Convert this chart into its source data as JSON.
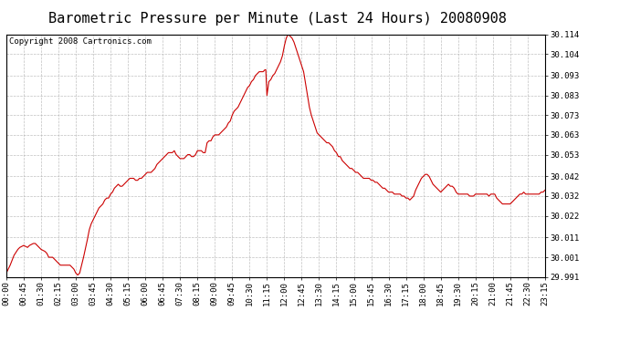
{
  "title": "Barometric Pressure per Minute (Last 24 Hours) 20080908",
  "copyright": "Copyright 2008 Cartronics.com",
  "line_color": "#cc0000",
  "background_color": "#ffffff",
  "grid_color": "#b0b0b0",
  "axis_label_color": "#000000",
  "ylim": [
    29.991,
    30.114
  ],
  "yticks": [
    29.991,
    30.001,
    30.011,
    30.022,
    30.032,
    30.042,
    30.053,
    30.063,
    30.073,
    30.083,
    30.093,
    30.104,
    30.114
  ],
  "xtick_labels": [
    "00:00",
    "00:45",
    "01:30",
    "02:15",
    "03:00",
    "03:45",
    "04:30",
    "05:15",
    "06:00",
    "06:45",
    "07:30",
    "08:15",
    "09:00",
    "09:45",
    "10:30",
    "11:15",
    "12:00",
    "12:45",
    "13:30",
    "14:15",
    "15:00",
    "15:45",
    "16:30",
    "17:15",
    "18:00",
    "18:45",
    "19:30",
    "20:15",
    "21:00",
    "21:45",
    "22:30",
    "23:15"
  ],
  "x_values": [
    0,
    45,
    90,
    135,
    180,
    225,
    270,
    315,
    360,
    405,
    450,
    495,
    540,
    585,
    630,
    675,
    720,
    765,
    810,
    855,
    900,
    945,
    990,
    1035,
    1080,
    1125,
    1170,
    1215,
    1260,
    1305,
    1350,
    1395
  ],
  "pressure_curve": [
    [
      0,
      29.993
    ],
    [
      10,
      29.997
    ],
    [
      20,
      30.002
    ],
    [
      30,
      30.005
    ],
    [
      35,
      30.006
    ],
    [
      45,
      30.007
    ],
    [
      55,
      30.006
    ],
    [
      60,
      30.007
    ],
    [
      70,
      30.008
    ],
    [
      75,
      30.008
    ],
    [
      80,
      30.007
    ],
    [
      90,
      30.005
    ],
    [
      100,
      30.004
    ],
    [
      105,
      30.003
    ],
    [
      110,
      30.001
    ],
    [
      120,
      30.001
    ],
    [
      125,
      30.0
    ],
    [
      130,
      29.999
    ],
    [
      135,
      29.998
    ],
    [
      140,
      29.997
    ],
    [
      145,
      29.997
    ],
    [
      150,
      29.997
    ],
    [
      155,
      29.997
    ],
    [
      160,
      29.997
    ],
    [
      165,
      29.997
    ],
    [
      170,
      29.996
    ],
    [
      175,
      29.995
    ],
    [
      180,
      29.993
    ],
    [
      185,
      29.992
    ],
    [
      190,
      29.993
    ],
    [
      200,
      30.001
    ],
    [
      210,
      30.01
    ],
    [
      215,
      30.015
    ],
    [
      220,
      30.018
    ],
    [
      225,
      30.02
    ],
    [
      230,
      30.022
    ],
    [
      235,
      30.024
    ],
    [
      240,
      30.026
    ],
    [
      245,
      30.027
    ],
    [
      250,
      30.028
    ],
    [
      255,
      30.03
    ],
    [
      260,
      30.031
    ],
    [
      265,
      30.031
    ],
    [
      270,
      30.033
    ],
    [
      275,
      30.034
    ],
    [
      280,
      30.036
    ],
    [
      285,
      30.037
    ],
    [
      290,
      30.038
    ],
    [
      295,
      30.037
    ],
    [
      300,
      30.037
    ],
    [
      305,
      30.038
    ],
    [
      310,
      30.039
    ],
    [
      315,
      30.04
    ],
    [
      320,
      30.041
    ],
    [
      325,
      30.041
    ],
    [
      330,
      30.041
    ],
    [
      335,
      30.04
    ],
    [
      340,
      30.04
    ],
    [
      345,
      30.041
    ],
    [
      350,
      30.041
    ],
    [
      355,
      30.042
    ],
    [
      360,
      30.043
    ],
    [
      365,
      30.044
    ],
    [
      370,
      30.044
    ],
    [
      375,
      30.044
    ],
    [
      380,
      30.045
    ],
    [
      385,
      30.046
    ],
    [
      390,
      30.048
    ],
    [
      395,
      30.049
    ],
    [
      400,
      30.05
    ],
    [
      405,
      30.051
    ],
    [
      410,
      30.052
    ],
    [
      415,
      30.053
    ],
    [
      420,
      30.054
    ],
    [
      425,
      30.054
    ],
    [
      430,
      30.054
    ],
    [
      435,
      30.055
    ],
    [
      440,
      30.053
    ],
    [
      445,
      30.052
    ],
    [
      450,
      30.051
    ],
    [
      455,
      30.051
    ],
    [
      460,
      30.051
    ],
    [
      465,
      30.052
    ],
    [
      470,
      30.053
    ],
    [
      475,
      30.053
    ],
    [
      480,
      30.052
    ],
    [
      485,
      30.052
    ],
    [
      490,
      30.053
    ],
    [
      495,
      30.055
    ],
    [
      500,
      30.055
    ],
    [
      505,
      30.055
    ],
    [
      510,
      30.054
    ],
    [
      515,
      30.054
    ],
    [
      517,
      30.056
    ],
    [
      520,
      30.059
    ],
    [
      525,
      30.06
    ],
    [
      530,
      30.06
    ],
    [
      535,
      30.062
    ],
    [
      540,
      30.063
    ],
    [
      545,
      30.063
    ],
    [
      550,
      30.063
    ],
    [
      555,
      30.064
    ],
    [
      560,
      30.065
    ],
    [
      565,
      30.066
    ],
    [
      570,
      30.067
    ],
    [
      575,
      30.069
    ],
    [
      580,
      30.07
    ],
    [
      585,
      30.073
    ],
    [
      590,
      30.075
    ],
    [
      595,
      30.076
    ],
    [
      600,
      30.077
    ],
    [
      605,
      30.079
    ],
    [
      610,
      30.081
    ],
    [
      615,
      30.083
    ],
    [
      620,
      30.085
    ],
    [
      625,
      30.087
    ],
    [
      630,
      30.088
    ],
    [
      635,
      30.09
    ],
    [
      640,
      30.091
    ],
    [
      645,
      30.093
    ],
    [
      650,
      30.094
    ],
    [
      655,
      30.095
    ],
    [
      660,
      30.095
    ],
    [
      665,
      30.095
    ],
    [
      670,
      30.096
    ],
    [
      672,
      30.096
    ],
    [
      675,
      30.083
    ],
    [
      680,
      30.09
    ],
    [
      685,
      30.091
    ],
    [
      690,
      30.093
    ],
    [
      695,
      30.094
    ],
    [
      700,
      30.096
    ],
    [
      705,
      30.098
    ],
    [
      710,
      30.1
    ],
    [
      715,
      30.103
    ],
    [
      720,
      30.108
    ],
    [
      725,
      30.112
    ],
    [
      730,
      30.114
    ],
    [
      735,
      30.113
    ],
    [
      740,
      30.112
    ],
    [
      745,
      30.11
    ],
    [
      750,
      30.107
    ],
    [
      755,
      30.104
    ],
    [
      760,
      30.101
    ],
    [
      765,
      30.098
    ],
    [
      770,
      30.095
    ],
    [
      775,
      30.089
    ],
    [
      780,
      30.083
    ],
    [
      785,
      30.077
    ],
    [
      790,
      30.073
    ],
    [
      795,
      30.07
    ],
    [
      800,
      30.067
    ],
    [
      805,
      30.064
    ],
    [
      810,
      30.063
    ],
    [
      815,
      30.062
    ],
    [
      820,
      30.061
    ],
    [
      825,
      30.06
    ],
    [
      830,
      30.059
    ],
    [
      835,
      30.059
    ],
    [
      840,
      30.058
    ],
    [
      845,
      30.057
    ],
    [
      850,
      30.055
    ],
    [
      855,
      30.054
    ],
    [
      860,
      30.052
    ],
    [
      865,
      30.052
    ],
    [
      870,
      30.05
    ],
    [
      875,
      30.049
    ],
    [
      880,
      30.048
    ],
    [
      885,
      30.047
    ],
    [
      890,
      30.046
    ],
    [
      895,
      30.046
    ],
    [
      900,
      30.045
    ],
    [
      905,
      30.044
    ],
    [
      910,
      30.044
    ],
    [
      915,
      30.043
    ],
    [
      920,
      30.042
    ],
    [
      925,
      30.041
    ],
    [
      930,
      30.041
    ],
    [
      935,
      30.041
    ],
    [
      940,
      30.041
    ],
    [
      945,
      30.04
    ],
    [
      950,
      30.04
    ],
    [
      955,
      30.039
    ],
    [
      960,
      30.039
    ],
    [
      965,
      30.038
    ],
    [
      970,
      30.037
    ],
    [
      975,
      30.036
    ],
    [
      980,
      30.036
    ],
    [
      985,
      30.035
    ],
    [
      990,
      30.034
    ],
    [
      995,
      30.034
    ],
    [
      1000,
      30.034
    ],
    [
      1005,
      30.033
    ],
    [
      1010,
      30.033
    ],
    [
      1015,
      30.033
    ],
    [
      1020,
      30.033
    ],
    [
      1025,
      30.032
    ],
    [
      1030,
      30.032
    ],
    [
      1035,
      30.031
    ],
    [
      1040,
      30.031
    ],
    [
      1045,
      30.03
    ],
    [
      1050,
      30.031
    ],
    [
      1055,
      30.032
    ],
    [
      1060,
      30.035
    ],
    [
      1065,
      30.037
    ],
    [
      1070,
      30.039
    ],
    [
      1075,
      30.041
    ],
    [
      1080,
      30.042
    ],
    [
      1085,
      30.043
    ],
    [
      1090,
      30.043
    ],
    [
      1095,
      30.042
    ],
    [
      1100,
      30.04
    ],
    [
      1105,
      30.038
    ],
    [
      1110,
      30.037
    ],
    [
      1115,
      30.036
    ],
    [
      1120,
      30.035
    ],
    [
      1125,
      30.034
    ],
    [
      1130,
      30.035
    ],
    [
      1135,
      30.036
    ],
    [
      1140,
      30.037
    ],
    [
      1145,
      30.038
    ],
    [
      1150,
      30.037
    ],
    [
      1155,
      30.037
    ],
    [
      1160,
      30.036
    ],
    [
      1165,
      30.034
    ],
    [
      1170,
      30.033
    ],
    [
      1175,
      30.033
    ],
    [
      1180,
      30.033
    ],
    [
      1185,
      30.033
    ],
    [
      1190,
      30.033
    ],
    [
      1195,
      30.033
    ],
    [
      1200,
      30.032
    ],
    [
      1205,
      30.032
    ],
    [
      1210,
      30.032
    ],
    [
      1215,
      30.033
    ],
    [
      1220,
      30.033
    ],
    [
      1225,
      30.033
    ],
    [
      1230,
      30.033
    ],
    [
      1235,
      30.033
    ],
    [
      1240,
      30.033
    ],
    [
      1245,
      30.033
    ],
    [
      1250,
      30.032
    ],
    [
      1255,
      30.033
    ],
    [
      1260,
      30.033
    ],
    [
      1265,
      30.033
    ],
    [
      1270,
      30.031
    ],
    [
      1275,
      30.03
    ],
    [
      1280,
      30.029
    ],
    [
      1285,
      30.028
    ],
    [
      1290,
      30.028
    ],
    [
      1295,
      30.028
    ],
    [
      1300,
      30.028
    ],
    [
      1305,
      30.028
    ],
    [
      1310,
      30.029
    ],
    [
      1315,
      30.03
    ],
    [
      1320,
      30.031
    ],
    [
      1325,
      30.032
    ],
    [
      1330,
      30.033
    ],
    [
      1335,
      30.033
    ],
    [
      1340,
      30.034
    ],
    [
      1345,
      30.033
    ],
    [
      1350,
      30.033
    ],
    [
      1355,
      30.033
    ],
    [
      1360,
      30.033
    ],
    [
      1365,
      30.033
    ],
    [
      1370,
      30.033
    ],
    [
      1375,
      30.033
    ],
    [
      1380,
      30.033
    ],
    [
      1385,
      30.034
    ],
    [
      1390,
      30.034
    ],
    [
      1395,
      30.035
    ]
  ],
  "title_fontsize": 11,
  "tick_fontsize": 6.5,
  "copyright_fontsize": 6.5,
  "figsize": [
    6.9,
    3.75
  ],
  "dpi": 100
}
